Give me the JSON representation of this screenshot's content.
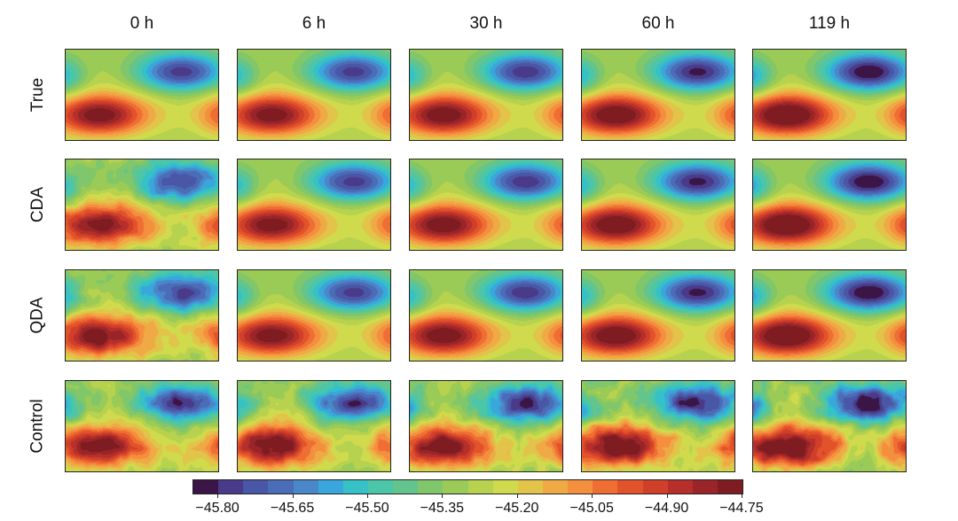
{
  "chart_data": {
    "type": "heatmap",
    "subtype": "filled-contour grid",
    "columns": [
      "0 h",
      "6 h",
      "30 h",
      "60 h",
      "119 h"
    ],
    "rows": [
      "True",
      "CDA",
      "QDA",
      "Control"
    ],
    "description": "Filled contour fields; high (red) region lower-left, low (blue) region upper-right; CDA/QDA noisy at 0 h and converge to True; Control stays noisy",
    "noise_level": {
      "True": [
        0,
        0,
        0,
        0,
        0
      ],
      "CDA": [
        0.55,
        0.06,
        0.03,
        0.02,
        0.02
      ],
      "QDA": [
        0.55,
        0.05,
        0.03,
        0.02,
        0.02
      ],
      "Control": [
        0.6,
        0.65,
        0.7,
        0.8,
        0.9
      ]
    },
    "intensity": [
      1.0,
      1.0,
      1.03,
      1.08,
      1.16
    ],
    "colorbar": {
      "range": [
        -45.85,
        -44.75
      ],
      "levels": 22,
      "ticks": [
        "−45.80",
        "−45.65",
        "−45.50",
        "−45.35",
        "−45.20",
        "−45.05",
        "−44.90",
        "−44.75"
      ],
      "tick_values": [
        -45.8,
        -45.65,
        -45.5,
        -45.35,
        -45.2,
        -45.05,
        -44.9,
        -44.75
      ],
      "colors": [
        "#3b1546",
        "#4a3a8a",
        "#4a56a6",
        "#4b6cb7",
        "#4a87c8",
        "#3aa7dc",
        "#35c1c6",
        "#4cc6a8",
        "#63c48e",
        "#80c66a",
        "#9acb56",
        "#b6d24f",
        "#cfdb4c",
        "#e2c44a",
        "#efaa45",
        "#f48f3e",
        "#ef6e33",
        "#e2522b",
        "#cf3f2a",
        "#b62f2a",
        "#992528",
        "#7e1c22"
      ]
    }
  }
}
